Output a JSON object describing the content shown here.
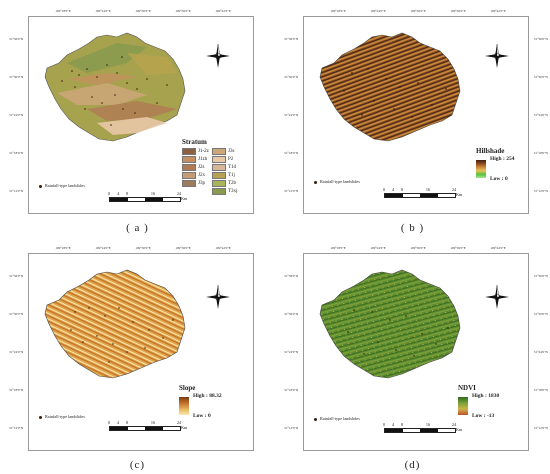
{
  "panels": {
    "a": {
      "label": "( a )",
      "top_ticks": [
        "109°18'0\"E",
        "109°24'0\"E",
        "109°30'0\"E",
        "109°36'0\"E",
        "109°42'0\"E"
      ],
      "left_ticks": [
        "31°36'0\"N",
        "31°30'0\"N",
        "31°24'0\"N",
        "31°18'0\"N",
        "31°12'0\"N"
      ],
      "right_ticks": [],
      "landslide_label": "Rainfall-type landslides",
      "legend_title": "Stratum",
      "stratum_items": [
        {
          "name": "J1-2z",
          "color": "#8a6040"
        },
        {
          "name": "J3s",
          "color": "#cda77a"
        },
        {
          "name": "J1zh",
          "color": "#c48f62"
        },
        {
          "name": "P2",
          "color": "#e9c8a8"
        },
        {
          "name": "J2s",
          "color": "#b07a55"
        },
        {
          "name": "T1d",
          "color": "#d8b69a"
        },
        {
          "name": "J2x",
          "color": "#c69b77"
        },
        {
          "name": "T1j",
          "color": "#b7a34f"
        },
        {
          "name": "J3p",
          "color": "#9a7c5a"
        },
        {
          "name": "T2b",
          "color": "#a9b35a"
        },
        {
          "name": "",
          "color": ""
        },
        {
          "name": "T3xj",
          "color": "#8a9a4e"
        }
      ]
    },
    "b": {
      "label": "( b )",
      "top_ticks": [
        "109°18'0\"E",
        "109°24'0\"E",
        "109°30'0\"E",
        "109°36'0\"E",
        "109°42'0\"E"
      ],
      "left_ticks": [
        "31°36'0\"N",
        "31°30'0\"N",
        "31°24'0\"N",
        "31°18'0\"N",
        "31°12'0\"N"
      ],
      "right_ticks": [
        "31°36'0\"N",
        "31°30'0\"N",
        "31°24'0\"N",
        "31°18'0\"N",
        "31°12'0\"N"
      ],
      "landslide_label": "Rainfall-type landslides",
      "legend_title": "Hillshade",
      "high_label": "High : 254",
      "low_label": "Low : 0",
      "ramp_colors": [
        "#3b1f10",
        "#8a4a1e",
        "#c98a3a",
        "#e9c25a",
        "#58c040",
        "#a8e890"
      ]
    },
    "c": {
      "label": "(c)",
      "top_ticks": [
        "109°18'0\"E",
        "109°24'0\"E",
        "109°30'0\"E",
        "109°36'0\"E",
        "109°42'0\"E"
      ],
      "left_ticks": [
        "31°36'0\"N",
        "31°30'0\"N",
        "31°24'0\"N",
        "31°18'0\"N",
        "31°12'0\"N"
      ],
      "right_ticks": [],
      "landslide_label": "Rainfall-type landslides",
      "legend_title": "Slope",
      "high_label": "High : 88.32",
      "low_label": "Low : 0",
      "ramp_colors": [
        "#7a3a0e",
        "#c0702a",
        "#e6b25a",
        "#fbe8b0"
      ]
    },
    "d": {
      "label": "(d)",
      "top_ticks": [
        "109°18'0\"E",
        "109°24'0\"E",
        "109°30'0\"E",
        "109°36'0\"E",
        "109°42'0\"E"
      ],
      "left_ticks": [
        "31°36'0\"N",
        "31°30'0\"N",
        "31°24'0\"N",
        "31°18'0\"N",
        "31°12'0\"N"
      ],
      "right_ticks": [
        "31°36'0\"N",
        "31°30'0\"N",
        "31°24'0\"N",
        "31°18'0\"N",
        "31°12'0\"N"
      ],
      "landslide_label": "Rainfall-type landslides",
      "legend_title": "NDVI",
      "high_label": "High : 1830",
      "low_label": "Low : -13",
      "ramp_colors": [
        "#2f6b1e",
        "#7aa03a",
        "#c8b44a",
        "#c0502a"
      ]
    }
  },
  "scale_bar": {
    "ticks": [
      "0",
      "4",
      "8",
      "16",
      "24"
    ],
    "unit": "Km"
  },
  "compass": {
    "n": "N",
    "s": "S",
    "e": "E",
    "w": "W"
  },
  "colors": {
    "stratum_base": "#a7a24e",
    "hillshade_base": "#8a4e25",
    "slope_base": "#e2a54a",
    "ndvi_base": "#5d8a2e",
    "landslide_dot": "#3a1e0a"
  }
}
